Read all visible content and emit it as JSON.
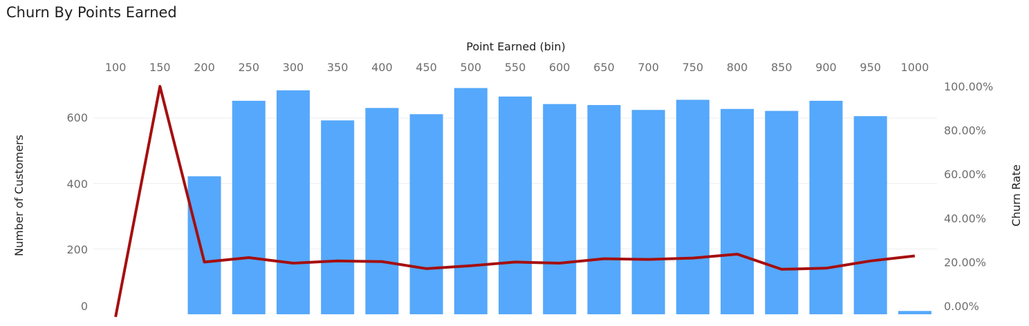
{
  "header": {
    "title": "Churn By Points Earned"
  },
  "chart_data": {
    "type": "bar",
    "title": "Churn By Points Earned",
    "xlabel": "Point Earned (bin)",
    "ylabel": "Number of Customers",
    "y2label": "Churn Rate",
    "categories": [
      "100",
      "150",
      "200",
      "250",
      "300",
      "350",
      "400",
      "450",
      "500",
      "550",
      "600",
      "650",
      "700",
      "750",
      "800",
      "850",
      "900",
      "950",
      "1000"
    ],
    "y_ticks": [
      "0",
      "200",
      "400",
      "600"
    ],
    "y2_ticks": [
      "0.00%",
      "20.00%",
      "40.00%",
      "60.00%",
      "80.00%",
      "100.00%"
    ],
    "ylim": [
      0,
      700
    ],
    "y2lim": [
      0,
      1.0
    ],
    "series": [
      {
        "name": "Number of Customers",
        "kind": "bar",
        "color": "#55a8fb",
        "values": [
          0,
          0,
          422,
          653,
          685,
          593,
          631,
          612,
          692,
          666,
          643,
          640,
          625,
          656,
          628,
          622,
          653,
          606,
          10
        ]
      },
      {
        "name": "Churn Rate",
        "kind": "line",
        "axis": "right",
        "color": "#a50f0f",
        "values": [
          -0.05,
          1.0,
          0.2,
          0.22,
          0.195,
          0.205,
          0.202,
          0.17,
          0.183,
          0.2,
          0.195,
          0.215,
          0.212,
          0.218,
          0.236,
          0.167,
          0.172,
          0.205,
          0.228
        ]
      }
    ],
    "grid": true
  }
}
